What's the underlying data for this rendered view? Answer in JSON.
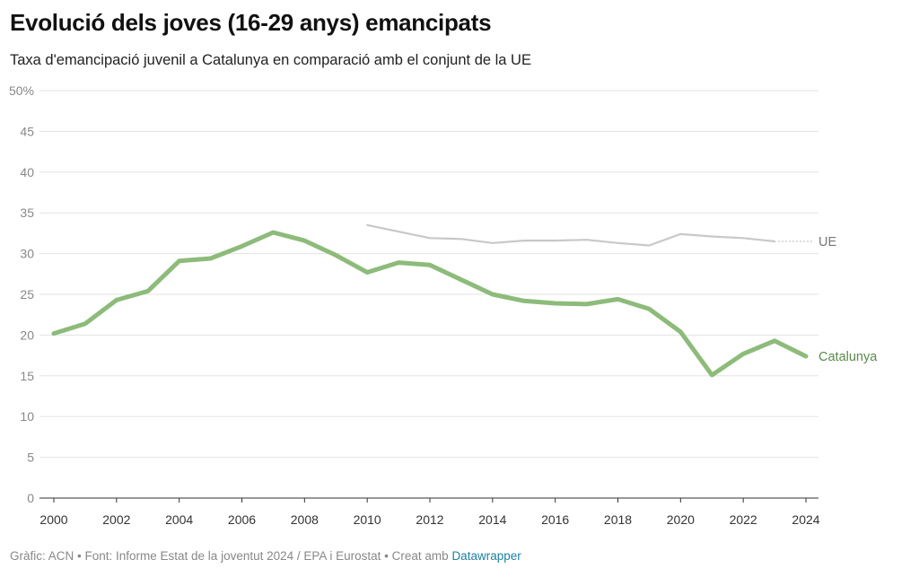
{
  "title": "Evolució dels joves (16-29 anys) emancipats",
  "subtitle": "Taxa d'emancipació juvenil a Catalunya en comparació amb el conjunt de la UE",
  "footer": {
    "text": "Gràfic: ACN • Font: Informe Estat de la joventut 2024 / EPA i Eurostat • Creat amb ",
    "link": "Datawrapper"
  },
  "chart_data": {
    "type": "line",
    "title": "Evolució dels joves (16-29 anys) emancipats",
    "subtitle": "Taxa d'emancipació juvenil a Catalunya en comparació amb el conjunt de la UE",
    "xlabel": "",
    "ylabel": "",
    "xlim": [
      2000,
      2024
    ],
    "ylim": [
      0,
      50
    ],
    "y_ticks": [
      0,
      5,
      10,
      15,
      20,
      25,
      30,
      35,
      40,
      45,
      50
    ],
    "y_tick_labels": [
      "0",
      "5",
      "10",
      "15",
      "20",
      "25",
      "30",
      "35",
      "40",
      "45",
      "50%"
    ],
    "x_ticks": [
      2000,
      2002,
      2004,
      2006,
      2008,
      2010,
      2012,
      2014,
      2016,
      2018,
      2020,
      2022,
      2024
    ],
    "grid": true,
    "legend": "inline labels at line ends",
    "series": [
      {
        "name": "Catalunya",
        "color": "#8dbb7a",
        "label_color": "#5b8a49",
        "x": [
          2000,
          2001,
          2002,
          2003,
          2004,
          2005,
          2006,
          2007,
          2008,
          2009,
          2010,
          2011,
          2012,
          2013,
          2014,
          2015,
          2016,
          2017,
          2018,
          2019,
          2020,
          2021,
          2022,
          2023,
          2024
        ],
        "values": [
          20.2,
          21.4,
          24.3,
          25.4,
          29.1,
          29.4,
          30.9,
          32.6,
          31.6,
          29.8,
          27.7,
          28.9,
          28.6,
          26.8,
          25.0,
          24.2,
          23.9,
          23.8,
          24.4,
          23.2,
          20.4,
          15.1,
          17.7,
          19.3,
          17.4
        ]
      },
      {
        "name": "UE",
        "color": "#c8c8c8",
        "label_color": "#777777",
        "x": [
          2010,
          2011,
          2012,
          2013,
          2014,
          2015,
          2016,
          2017,
          2018,
          2019,
          2020,
          2021,
          2022,
          2023
        ],
        "values": [
          33.5,
          32.7,
          31.9,
          31.8,
          31.3,
          31.6,
          31.6,
          31.7,
          31.3,
          31.0,
          32.4,
          32.1,
          31.9,
          31.5
        ]
      }
    ]
  }
}
